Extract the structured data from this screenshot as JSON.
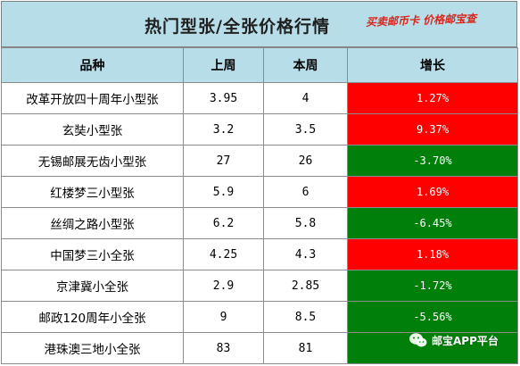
{
  "title": "热门型张/全张价格行情",
  "slogan": "买卖邮币卡  价格邮宝查",
  "headers": {
    "name": "品种",
    "last_week": "上周",
    "this_week": "本周",
    "growth": "增长"
  },
  "rows": [
    {
      "name": "改革开放四十周年小型张",
      "last_week": "3.95",
      "this_week": "4",
      "growth": "1.27%",
      "trend": "up"
    },
    {
      "name": "玄奘小型张",
      "last_week": "3.2",
      "this_week": "3.5",
      "growth": "9.37%",
      "trend": "up"
    },
    {
      "name": "无锡邮展无齿小型张",
      "last_week": "27",
      "this_week": "26",
      "growth": "-3.70%",
      "trend": "down"
    },
    {
      "name": "红楼梦三小型张",
      "last_week": "5.9",
      "this_week": "6",
      "growth": "1.69%",
      "trend": "up"
    },
    {
      "name": "丝绸之路小型张",
      "last_week": "6.2",
      "this_week": "5.8",
      "growth": "-6.45%",
      "trend": "down"
    },
    {
      "name": "中国梦三小全张",
      "last_week": "4.25",
      "this_week": "4.3",
      "growth": "1.18%",
      "trend": "up"
    },
    {
      "name": "京津冀小全张",
      "last_week": "2.9",
      "this_week": "2.85",
      "growth": "-1.72%",
      "trend": "down"
    },
    {
      "name": "邮政120周年小全张",
      "last_week": "9",
      "this_week": "8.5",
      "growth": "-5.56%",
      "trend": "down"
    },
    {
      "name": "港珠澳三地小全张",
      "last_week": "83",
      "this_week": "81",
      "growth": "",
      "trend": "down"
    }
  ],
  "colors": {
    "header_bg": "#b7dde8",
    "up": "#ff0000",
    "down": "#00800a"
  },
  "watermark": {
    "icon": "wechat-icon",
    "text": "邮宝APP平台"
  }
}
